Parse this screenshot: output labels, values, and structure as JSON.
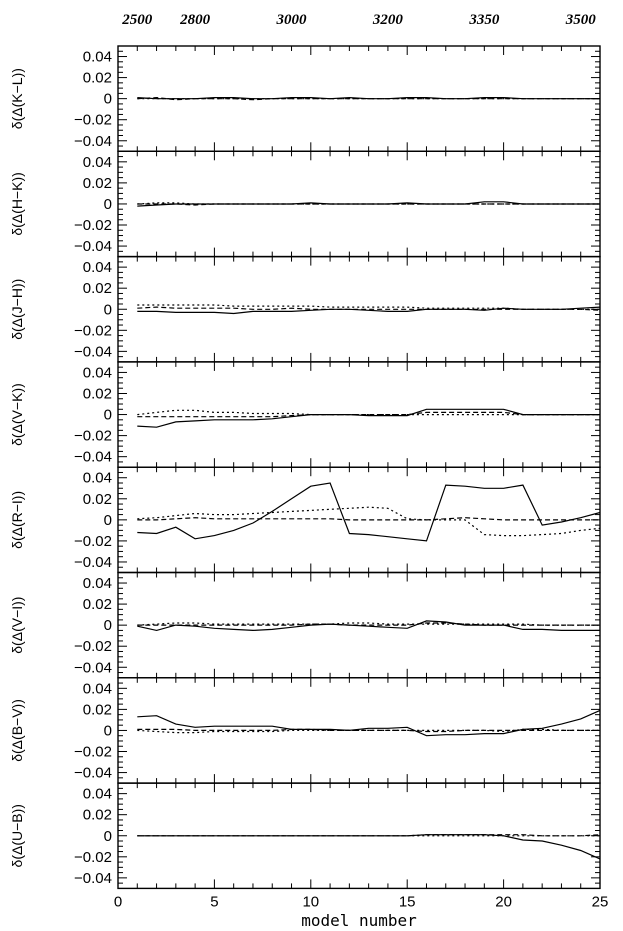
{
  "chart_data": {
    "type": "line",
    "xlabel": "model number",
    "xlim": [
      0,
      25
    ],
    "x_ticks": [
      0,
      5,
      10,
      15,
      20,
      25
    ],
    "ylim": [
      -0.05,
      0.05
    ],
    "y_ticks": [
      0.04,
      0.02,
      0,
      -0.02,
      -0.04
    ],
    "y_tick_labels": [
      "0.04",
      "0.02",
      "0",
      "−0.02",
      "−0.04"
    ],
    "top_axis": {
      "positions": [
        1,
        4,
        9,
        14,
        19,
        24
      ],
      "labels": [
        "2500",
        "2800",
        "3000",
        "3200",
        "3350",
        "3500"
      ]
    },
    "x": [
      1,
      2,
      3,
      4,
      5,
      6,
      7,
      8,
      9,
      10,
      11,
      12,
      13,
      14,
      15,
      16,
      17,
      18,
      19,
      20,
      21,
      22,
      23,
      24,
      25
    ],
    "panels": [
      {
        "ylabel": "δ(Δ(K−L))",
        "series": [
          {
            "style": "solid",
            "values": [
              0.001,
              0.0,
              0.0,
              0.0,
              0.001,
              0.001,
              0.0,
              0.0,
              0.001,
              0.001,
              0.0,
              0.001,
              0.0,
              0.0,
              0.001,
              0.001,
              0.0,
              0.0,
              0.001,
              0.001,
              0.0,
              0.0,
              0.0,
              0.0,
              0.0
            ]
          },
          {
            "style": "dotted",
            "values": [
              0.0,
              0.0,
              0.0,
              0.0,
              0.0,
              0.0,
              0.0,
              0.0,
              0.0,
              0.0,
              0.0,
              0.0,
              0.0,
              0.0,
              0.0,
              0.0,
              0.0,
              0.0,
              0.0,
              0.0,
              0.0,
              0.0,
              0.0,
              0.0,
              0.0
            ]
          },
          {
            "style": "dashed",
            "values": [
              0.0,
              0.001,
              -0.001,
              0.0,
              0.0,
              0.0,
              -0.001,
              0.0,
              0.0,
              0.0,
              0.0,
              0.0,
              0.0,
              0.0,
              0.0,
              0.0,
              0.0,
              0.0,
              0.0,
              0.0,
              0.0,
              0.0,
              0.0,
              0.0,
              0.0
            ]
          }
        ]
      },
      {
        "ylabel": "δ(Δ(H−K))",
        "series": [
          {
            "style": "solid",
            "values": [
              -0.002,
              -0.001,
              0.0,
              0.0,
              0.0,
              0.0,
              0.0,
              0.0,
              0.0,
              0.001,
              0.0,
              0.0,
              0.0,
              0.0,
              0.001,
              0.0,
              0.0,
              0.0,
              0.002,
              0.002,
              0.0,
              0.0,
              0.0,
              0.0,
              0.0
            ]
          },
          {
            "style": "dotted",
            "values": [
              0.0,
              0.001,
              0.001,
              0.0,
              0.0,
              0.0,
              0.0,
              0.0,
              0.0,
              0.0,
              0.0,
              0.0,
              0.0,
              0.0,
              0.0,
              0.0,
              0.0,
              0.0,
              0.0,
              0.0,
              0.0,
              0.0,
              0.0,
              0.0,
              0.0
            ]
          },
          {
            "style": "dashed",
            "values": [
              0.0,
              0.0,
              0.0,
              -0.001,
              0.0,
              0.0,
              0.0,
              0.0,
              0.0,
              0.0,
              0.0,
              0.0,
              0.0,
              0.0,
              0.0,
              0.0,
              0.0,
              0.0,
              0.0,
              0.0,
              0.0,
              0.0,
              0.0,
              0.0,
              0.0
            ]
          }
        ]
      },
      {
        "ylabel": "δ(Δ(J−H))",
        "series": [
          {
            "style": "solid",
            "values": [
              -0.002,
              -0.002,
              -0.003,
              -0.003,
              -0.003,
              -0.004,
              -0.002,
              -0.002,
              -0.002,
              -0.001,
              0.0,
              0.0,
              -0.001,
              -0.002,
              -0.002,
              0.0,
              0.0,
              0.0,
              -0.001,
              0.001,
              0.0,
              0.0,
              0.0,
              0.001,
              0.002
            ]
          },
          {
            "style": "dotted",
            "values": [
              0.004,
              0.004,
              0.004,
              0.004,
              0.004,
              0.003,
              0.003,
              0.003,
              0.003,
              0.003,
              0.002,
              0.002,
              0.002,
              0.002,
              0.002,
              0.001,
              0.001,
              0.001,
              0.001,
              0.001,
              0.0,
              0.0,
              0.0,
              0.0,
              0.0
            ]
          },
          {
            "style": "dashed",
            "values": [
              0.001,
              0.002,
              0.001,
              0.001,
              0.001,
              0.001,
              0.0,
              0.0,
              0.001,
              0.0,
              0.0,
              0.0,
              0.0,
              0.0,
              0.0,
              0.0,
              0.0,
              0.0,
              0.0,
              0.0,
              0.0,
              0.0,
              0.0,
              0.0,
              -0.001
            ]
          }
        ]
      },
      {
        "ylabel": "δ(Δ(V−K))",
        "series": [
          {
            "style": "solid",
            "values": [
              -0.011,
              -0.012,
              -0.007,
              -0.006,
              -0.005,
              -0.005,
              -0.005,
              -0.004,
              -0.002,
              0.0,
              0.0,
              0.0,
              -0.001,
              -0.001,
              -0.001,
              0.005,
              0.005,
              0.005,
              0.005,
              0.005,
              0.0,
              0.0,
              0.0,
              0.0,
              0.0
            ]
          },
          {
            "style": "dotted",
            "values": [
              0.0,
              0.002,
              0.004,
              0.004,
              0.002,
              0.002,
              0.001,
              0.001,
              0.001,
              0.0,
              0.0,
              0.0,
              0.0,
              0.0,
              0.0,
              0.0,
              0.0,
              0.0,
              0.0,
              0.0,
              0.0,
              0.0,
              0.0,
              0.0,
              0.0
            ]
          },
          {
            "style": "dashed",
            "values": [
              -0.002,
              -0.002,
              -0.002,
              -0.002,
              -0.002,
              -0.002,
              -0.002,
              -0.002,
              -0.001,
              0.0,
              0.0,
              0.0,
              0.0,
              0.0,
              0.0,
              0.002,
              0.002,
              0.002,
              0.002,
              0.002,
              0.0,
              0.0,
              0.0,
              0.0,
              0.0
            ]
          }
        ]
      },
      {
        "ylabel": "δ(Δ(R−I))",
        "series": [
          {
            "style": "solid",
            "values": [
              -0.012,
              -0.013,
              -0.007,
              -0.018,
              -0.015,
              -0.01,
              -0.003,
              0.008,
              0.02,
              0.032,
              0.035,
              -0.013,
              -0.014,
              -0.016,
              -0.018,
              -0.02,
              0.033,
              0.032,
              0.03,
              0.03,
              0.033,
              -0.005,
              -0.002,
              0.002,
              0.007
            ]
          },
          {
            "style": "dotted",
            "values": [
              0.001,
              0.002,
              0.004,
              0.006,
              0.005,
              0.005,
              0.006,
              0.007,
              0.008,
              0.009,
              0.01,
              0.011,
              0.012,
              0.011,
              0.001,
              0.0,
              0.0,
              0.0,
              -0.014,
              -0.015,
              -0.015,
              -0.014,
              -0.013,
              -0.01,
              -0.008
            ]
          },
          {
            "style": "dashed",
            "values": [
              0.0,
              0.0,
              0.001,
              0.002,
              0.001,
              0.001,
              0.001,
              0.001,
              0.001,
              0.001,
              0.001,
              0.0,
              0.0,
              0.0,
              0.0,
              0.0,
              0.001,
              0.002,
              0.001,
              0.0,
              0.0,
              0.0,
              0.0,
              0.0,
              0.0
            ]
          }
        ]
      },
      {
        "ylabel": "δ(Δ(V−I))",
        "series": [
          {
            "style": "solid",
            "values": [
              -0.001,
              -0.005,
              0.0,
              -0.001,
              -0.003,
              -0.004,
              -0.005,
              -0.004,
              -0.002,
              0.0,
              0.001,
              0.0,
              -0.001,
              -0.002,
              -0.003,
              0.004,
              0.003,
              0.0,
              0.0,
              0.0,
              -0.004,
              -0.004,
              -0.005,
              -0.005,
              -0.005
            ]
          },
          {
            "style": "dotted",
            "values": [
              0.0,
              0.001,
              0.002,
              0.002,
              0.001,
              0.001,
              0.001,
              0.001,
              0.001,
              0.001,
              0.001,
              0.002,
              0.002,
              0.001,
              0.001,
              0.001,
              0.001,
              0.001,
              0.001,
              0.001,
              0.001,
              0.0,
              0.0,
              0.0,
              0.0
            ]
          },
          {
            "style": "dashed",
            "values": [
              0.0,
              0.0,
              0.0,
              0.0,
              0.0,
              0.0,
              0.0,
              0.0,
              0.0,
              0.001,
              0.001,
              0.0,
              0.0,
              0.0,
              0.0,
              0.002,
              0.002,
              0.001,
              0.0,
              0.0,
              0.0,
              0.0,
              0.0,
              0.0,
              0.0
            ]
          }
        ]
      },
      {
        "ylabel": "δ(Δ(B−V))",
        "series": [
          {
            "style": "solid",
            "values": [
              0.013,
              0.014,
              0.006,
              0.003,
              0.004,
              0.004,
              0.004,
              0.004,
              0.001,
              0.001,
              0.001,
              0.0,
              0.002,
              0.002,
              0.003,
              -0.005,
              -0.004,
              -0.004,
              -0.003,
              -0.003,
              0.001,
              0.002,
              0.006,
              0.011,
              0.019
            ]
          },
          {
            "style": "dotted",
            "values": [
              0.0,
              -0.001,
              -0.002,
              -0.002,
              -0.001,
              -0.001,
              -0.001,
              -0.001,
              0.0,
              0.0,
              0.0,
              0.0,
              0.0,
              0.0,
              0.0,
              0.0,
              0.0,
              0.0,
              0.0,
              -0.001,
              0.001,
              0.001,
              0.0,
              0.0,
              0.0
            ]
          },
          {
            "style": "dashed",
            "values": [
              0.001,
              0.001,
              0.001,
              0.0,
              0.0,
              0.0,
              0.0,
              0.0,
              0.001,
              0.001,
              0.0,
              0.0,
              0.0,
              0.0,
              0.0,
              -0.001,
              -0.001,
              0.0,
              0.0,
              0.0,
              0.0,
              0.0,
              0.0,
              0.0,
              0.0
            ]
          }
        ]
      },
      {
        "ylabel": "δ(Δ(U−B))",
        "series": [
          {
            "style": "solid",
            "values": [
              0.0,
              0.0,
              0.0,
              0.0,
              0.0,
              0.0,
              0.0,
              0.0,
              0.0,
              0.0,
              0.0,
              0.0,
              0.0,
              0.0,
              0.0,
              0.001,
              0.001,
              0.001,
              0.001,
              0.0,
              -0.004,
              -0.005,
              -0.009,
              -0.014,
              -0.022
            ]
          },
          {
            "style": "dotted",
            "values": [
              0.0,
              0.0,
              0.0,
              0.0,
              0.0,
              0.0,
              0.0,
              0.0,
              0.0,
              0.0,
              0.0,
              0.0,
              0.0,
              0.0,
              0.0,
              0.0,
              0.0,
              0.0,
              0.0,
              0.0,
              0.0,
              0.0,
              0.0,
              0.0,
              0.0
            ]
          },
          {
            "style": "dashed",
            "values": [
              0.0,
              0.0,
              0.0,
              0.0,
              0.0,
              0.0,
              0.0,
              0.0,
              0.0,
              0.0,
              0.0,
              0.0,
              0.0,
              0.0,
              0.0,
              0.001,
              0.001,
              0.001,
              0.001,
              0.001,
              0.001,
              0.0,
              0.0,
              0.0,
              0.001
            ]
          }
        ]
      }
    ]
  }
}
